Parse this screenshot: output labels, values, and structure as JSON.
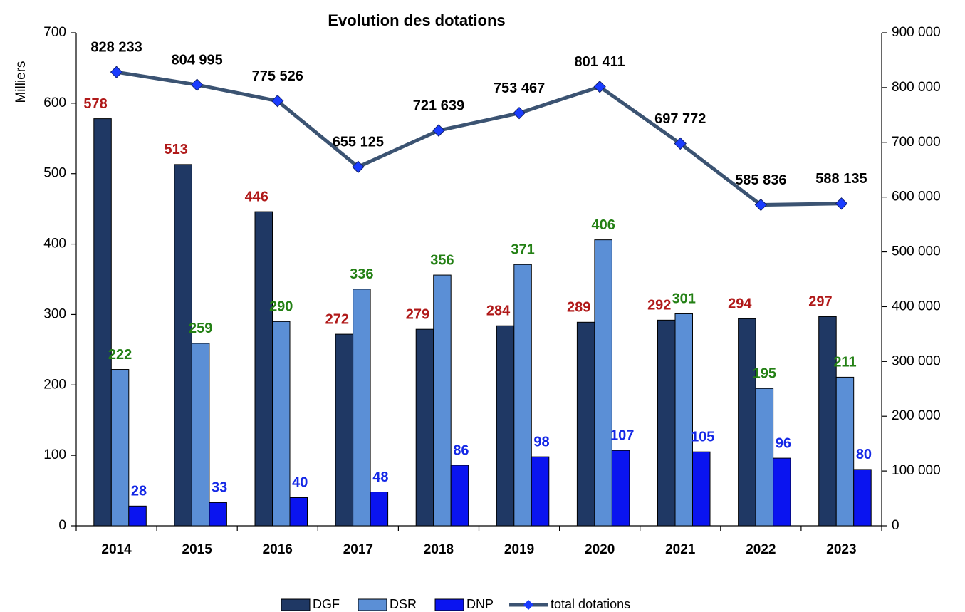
{
  "chart_data": {
    "type": "bar",
    "title": "Evolution des dotations",
    "y_label": "Milliers",
    "categories": [
      "2014",
      "2015",
      "2016",
      "2017",
      "2018",
      "2019",
      "2020",
      "2021",
      "2022",
      "2023"
    ],
    "series": [
      {
        "name": "DGF",
        "type": "bar",
        "color": "#1f3864",
        "label_color": "#b01919",
        "values": [
          578,
          513,
          446,
          272,
          279,
          284,
          289,
          292,
          294,
          297
        ]
      },
      {
        "name": "DSR",
        "type": "bar",
        "color": "#5b8fd6",
        "label_color": "#238014",
        "values": [
          222,
          259,
          290,
          336,
          356,
          371,
          406,
          301,
          195,
          211
        ]
      },
      {
        "name": "DNP",
        "type": "bar",
        "color": "#0a14f0",
        "label_color": "#1428e6",
        "values": [
          28,
          33,
          40,
          48,
          86,
          98,
          107,
          105,
          96,
          80
        ]
      },
      {
        "name": "total dotations",
        "type": "line",
        "axis": "y2",
        "color": "#3b5372",
        "marker_color": "#1a3cff",
        "values": [
          828233,
          804995,
          775526,
          655125,
          721639,
          753467,
          801411,
          697772,
          585836,
          588135
        ],
        "value_labels": [
          "828 233",
          "804 995",
          "775 526",
          "655 125",
          "721 639",
          "753 467",
          "801 411",
          "697 772",
          "585 836",
          "588 135"
        ]
      }
    ],
    "ylim": [
      0,
      700
    ],
    "yticks": [
      0,
      100,
      200,
      300,
      400,
      500,
      600,
      700
    ],
    "y2lim": [
      0,
      900000
    ],
    "y2ticks": [
      0,
      {
        "value": 100000,
        "label": "100 000"
      },
      {
        "value": 200000,
        "label": "200 000"
      },
      {
        "value": 300000,
        "label": "300 000"
      },
      {
        "value": 400000,
        "label": "400 000"
      },
      {
        "value": 500000,
        "label": "500 000"
      },
      {
        "value": 600000,
        "label": "600 000"
      },
      {
        "value": 700000,
        "label": "700 000"
      },
      {
        "value": 800000,
        "label": "800 000"
      },
      {
        "value": 900000,
        "label": "900 000"
      }
    ],
    "legend": "bottom"
  }
}
